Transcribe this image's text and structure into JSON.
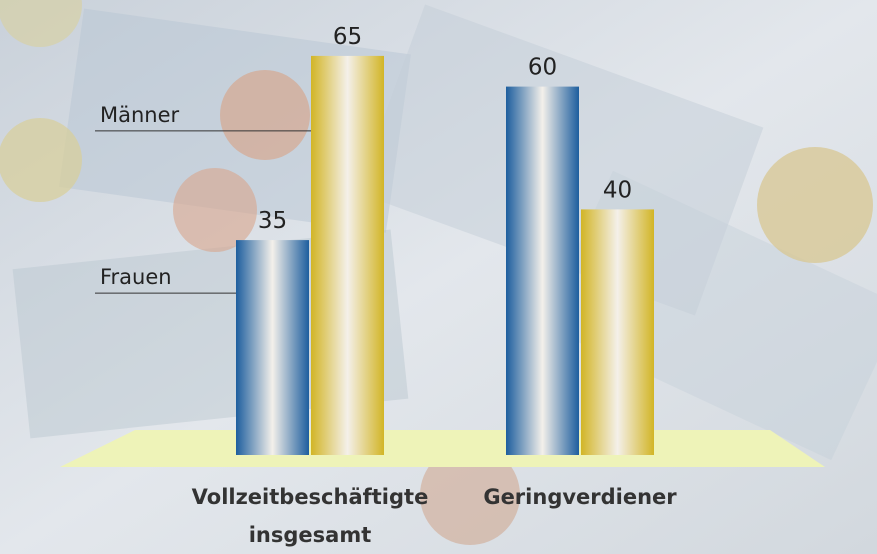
{
  "chart_data": {
    "type": "bar",
    "categories": [
      "Vollzeitbeschäftigte insgesamt",
      "Geringverdiener"
    ],
    "series": [
      {
        "name": "Frauen",
        "color": "#1d5e9e",
        "values": [
          35,
          60
        ]
      },
      {
        "name": "Männer",
        "color": "#d2b526",
        "values": [
          65,
          40
        ]
      }
    ]
  }
}
